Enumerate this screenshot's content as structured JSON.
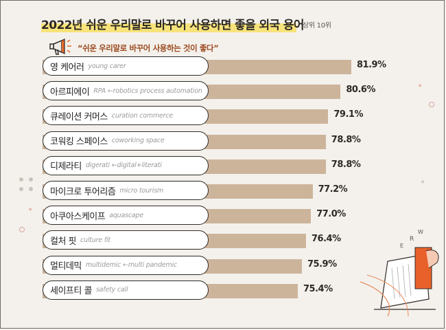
{
  "header": {
    "title": "2022년 쉬운 우리말로 바꾸어 사용하면 좋을 외국 용어",
    "subtitle": "상위 10위",
    "quote": "“쉬운 우리말로 바꾸어 사용하는 것이 좋다”"
  },
  "colors": {
    "bar": "#ccb49b",
    "highlight": "#f7e37a",
    "quote": "#9c4a20",
    "background": "#f4f1ec"
  },
  "chart_data": {
    "type": "bar",
    "orientation": "horizontal",
    "categories": [
      "영 케어러",
      "아르피에이",
      "큐레이션 커머스",
      "코워킹 스페이스",
      "디제라티",
      "마이크로 투어리즘",
      "아쿠아스케이프",
      "컬처 핏",
      "멀티데믹",
      "세이프티 콜"
    ],
    "english": [
      "young carer",
      "RPA ←robotics process automation",
      "curation commerce",
      "coworking space",
      "digerati ←digital+literati",
      "micro tourism",
      "aquascape",
      "culture fit",
      "multidemic ←multi pandemic",
      "safety call"
    ],
    "values": [
      81.9,
      80.6,
      79.1,
      78.8,
      78.8,
      77.2,
      77.0,
      76.4,
      75.9,
      75.4
    ],
    "value_labels": [
      "81.9%",
      "80.6%",
      "79.1%",
      "78.8%",
      "78.8%",
      "77.2%",
      "77.0%",
      "76.4%",
      "75.9%",
      "75.4%"
    ],
    "unit": "%"
  }
}
